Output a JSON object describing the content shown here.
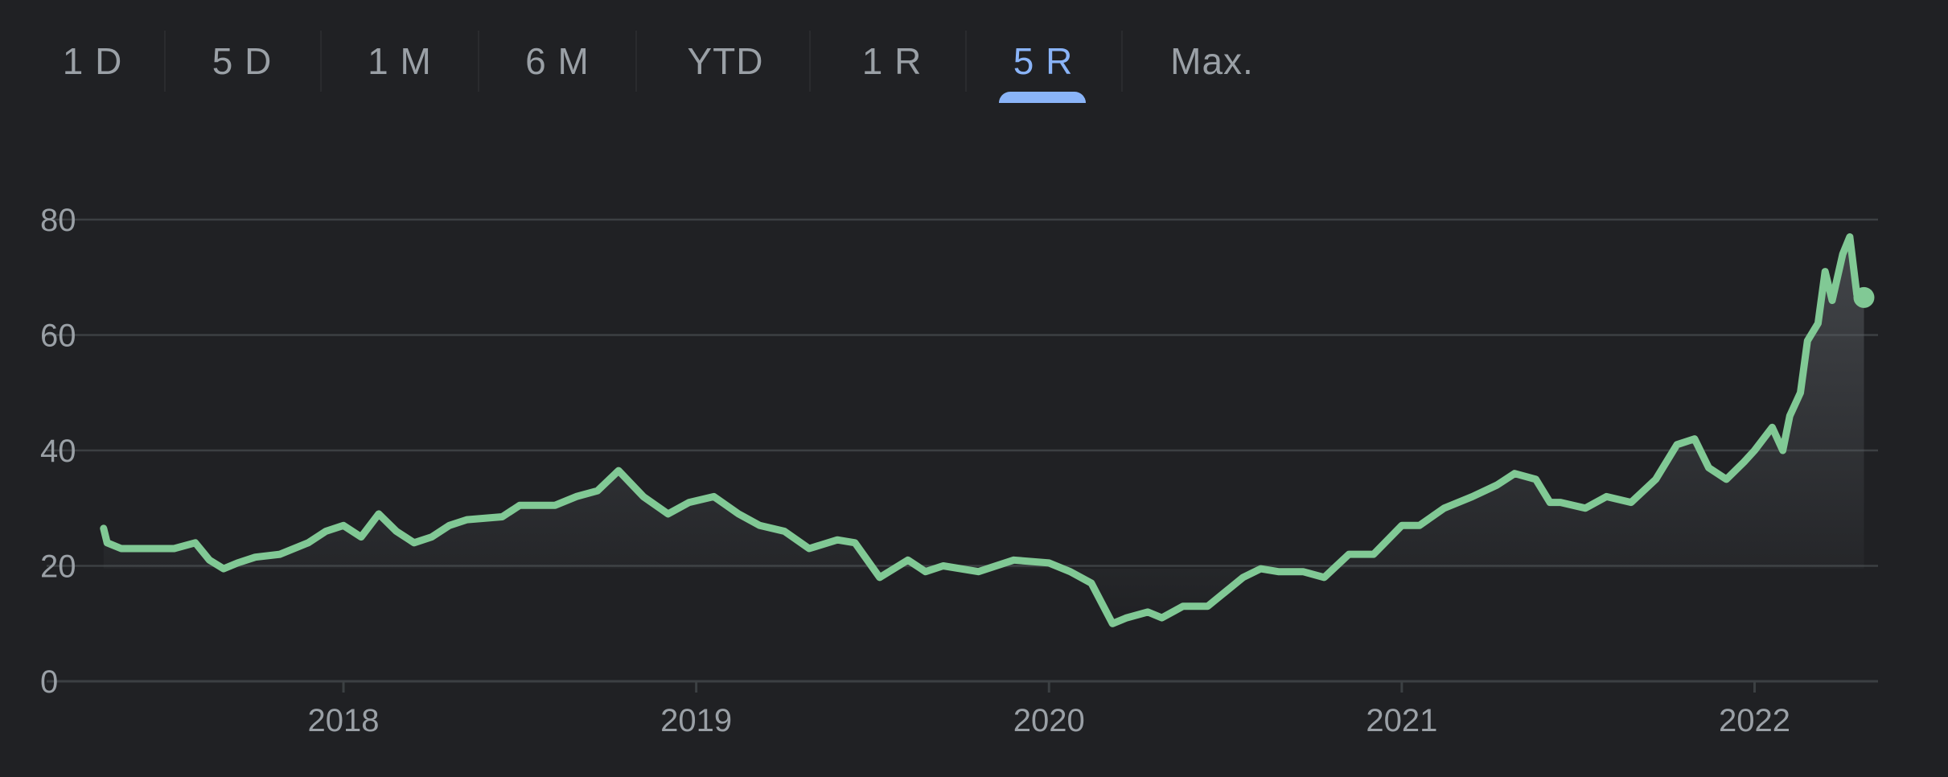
{
  "tabs": [
    {
      "label": "1 D"
    },
    {
      "label": "5 D"
    },
    {
      "label": "1 M"
    },
    {
      "label": "6 M"
    },
    {
      "label": "YTD"
    },
    {
      "label": "1 R"
    },
    {
      "label": "5 R",
      "active": true
    },
    {
      "label": "Max."
    }
  ],
  "colors": {
    "background": "#202124",
    "line": "#81c995",
    "grid": "#3c4043",
    "axis_text": "#9aa0a6",
    "active_tab": "#8ab4f8"
  },
  "chart_data": {
    "type": "line",
    "grid": true,
    "ylim": [
      0,
      80
    ],
    "yticks": [
      "0",
      "20",
      "40",
      "60",
      "80"
    ],
    "xlim": [
      2017.3,
      2022.35
    ],
    "xticks": [
      {
        "label": "2018",
        "value": 2018.0
      },
      {
        "label": "2019",
        "value": 2019.0
      },
      {
        "label": "2020",
        "value": 2020.0
      },
      {
        "label": "2021",
        "value": 2021.0
      },
      {
        "label": "2022",
        "value": 2022.0
      }
    ],
    "series": [
      {
        "x": [
          2017.32,
          2017.33,
          2017.37,
          2017.45,
          2017.52,
          2017.58,
          2017.62,
          2017.66,
          2017.7,
          2017.75,
          2017.82,
          2017.9,
          2017.95,
          2018.0,
          2018.05,
          2018.1,
          2018.15,
          2018.2,
          2018.25,
          2018.3,
          2018.35,
          2018.45,
          2018.5,
          2018.6,
          2018.66,
          2018.72,
          2018.78,
          2018.85,
          2018.92,
          2018.98,
          2019.05,
          2019.12,
          2019.18,
          2019.25,
          2019.32,
          2019.4,
          2019.45,
          2019.52,
          2019.6,
          2019.65,
          2019.7,
          2019.8,
          2019.9,
          2020.0,
          2020.06,
          2020.12,
          2020.18,
          2020.22,
          2020.28,
          2020.32,
          2020.38,
          2020.45,
          2020.55,
          2020.6,
          2020.65,
          2020.72,
          2020.78,
          2020.85,
          2020.92,
          2021.0,
          2021.05,
          2021.12,
          2021.2,
          2021.27,
          2021.32,
          2021.38,
          2021.42,
          2021.45,
          2021.52,
          2021.58,
          2021.65,
          2021.72,
          2021.78,
          2021.83,
          2021.87,
          2021.92,
          2021.97,
          2022.0,
          2022.05,
          2022.08,
          2022.1,
          2022.13,
          2022.15,
          2022.18,
          2022.2,
          2022.22,
          2022.25,
          2022.27,
          2022.29,
          2022.31
        ],
        "y": [
          26.5,
          24,
          23,
          23,
          23,
          24,
          21,
          19.5,
          20.5,
          21.5,
          22,
          24,
          26,
          27,
          25,
          29,
          26,
          24,
          25,
          27,
          28,
          28.5,
          30.5,
          30.5,
          32,
          33,
          36.5,
          32,
          29,
          31,
          32,
          29,
          27,
          26,
          23,
          24.5,
          24,
          18,
          21,
          19,
          20,
          19,
          21,
          20.5,
          19,
          17,
          10,
          11,
          12,
          11,
          13,
          13,
          18,
          19.5,
          19,
          19,
          18,
          22,
          22,
          27,
          27,
          30,
          32,
          34,
          36,
          35,
          31,
          31,
          30,
          32,
          31,
          35,
          41,
          42,
          37,
          35,
          38,
          40,
          44,
          40,
          46,
          50,
          59,
          62,
          71,
          66,
          74,
          77,
          67,
          66.5
        ]
      }
    ]
  }
}
